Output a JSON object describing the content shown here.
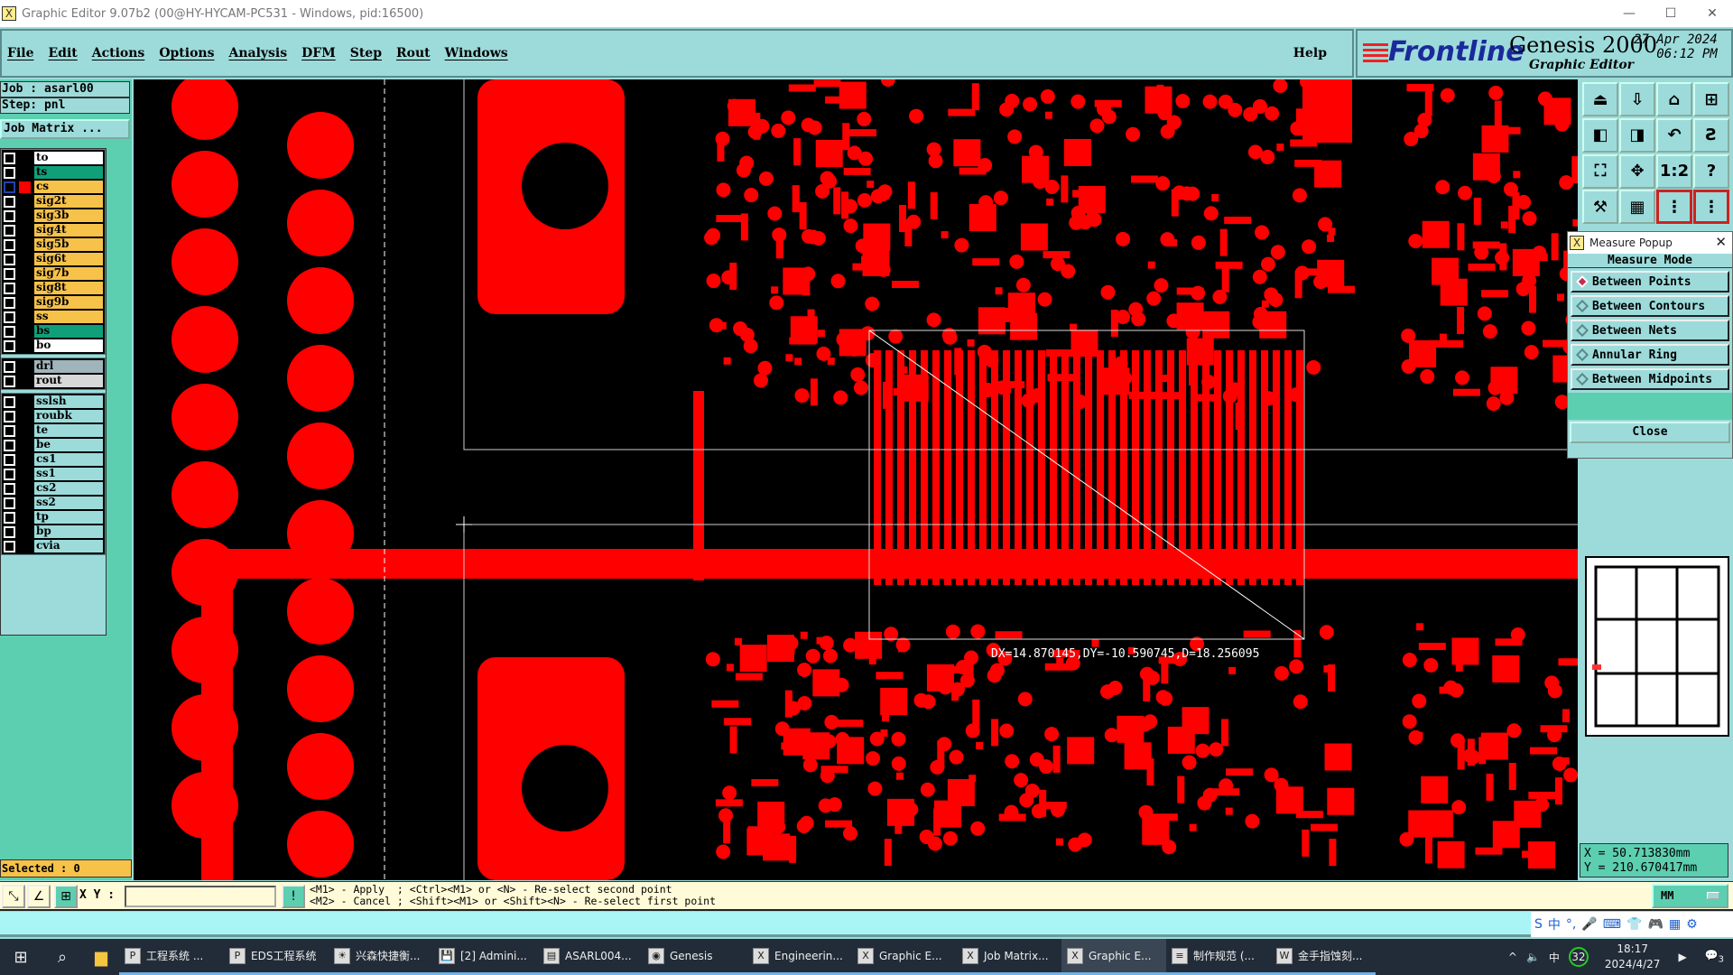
{
  "window": {
    "title": "Graphic Editor 9.07b2 (00@HY-HYCAM-PC531 - Windows, pid:16500)",
    "controls": [
      "—",
      "☐",
      "✕"
    ]
  },
  "menu": {
    "items": [
      "File",
      "Edit",
      "Actions",
      "Options",
      "Analysis",
      "DFM",
      "Step",
      "Rout",
      "Windows"
    ],
    "help": "Help"
  },
  "brand": {
    "logo": "Frontline",
    "product": "Genesis 2000",
    "subtitle": "Graphic Editor",
    "date": "27 Apr 2024",
    "time": "06:12 PM"
  },
  "job": {
    "job_label": "Job : asarl00",
    "step_label": "Step: pnl",
    "matrix_button": "Job Matrix ..."
  },
  "layers": [
    [
      {
        "name": "to",
        "color": "#ffffff"
      },
      {
        "name": "ts",
        "color": "#0fa07a"
      },
      {
        "name": "cs",
        "color": "#f7c24a",
        "active": true
      },
      {
        "name": "sig2t",
        "color": "#f7c24a"
      },
      {
        "name": "sig3b",
        "color": "#f7c24a"
      },
      {
        "name": "sig4t",
        "color": "#f7c24a"
      },
      {
        "name": "sig5b",
        "color": "#f7c24a"
      },
      {
        "name": "sig6t",
        "color": "#f7c24a"
      },
      {
        "name": "sig7b",
        "color": "#f7c24a"
      },
      {
        "name": "sig8t",
        "color": "#f7c24a"
      },
      {
        "name": "sig9b",
        "color": "#f7c24a"
      },
      {
        "name": "ss",
        "color": "#f7c24a"
      },
      {
        "name": "bs",
        "color": "#0fa07a"
      },
      {
        "name": "bo",
        "color": "#ffffff"
      }
    ],
    [
      {
        "name": "drl",
        "color": "#a0b4bc"
      },
      {
        "name": "rout",
        "color": "#d8d8d8"
      }
    ],
    [
      {
        "name": "sslsh",
        "color": "#9ddbdb"
      },
      {
        "name": "roubk",
        "color": "#9ddbdb"
      },
      {
        "name": "te",
        "color": "#9ddbdb"
      },
      {
        "name": "be",
        "color": "#9ddbdb"
      },
      {
        "name": "cs1",
        "color": "#9ddbdb"
      },
      {
        "name": "ss1",
        "color": "#9ddbdb"
      },
      {
        "name": "cs2",
        "color": "#9ddbdb"
      },
      {
        "name": "ss2",
        "color": "#9ddbdb"
      },
      {
        "name": "tp",
        "color": "#9ddbdb"
      },
      {
        "name": "bp",
        "color": "#9ddbdb"
      },
      {
        "name": "cvia",
        "color": "#9ddbdb"
      }
    ]
  ],
  "selected": "Selected : 0",
  "canvas": {
    "measure_readout": "DX=14.870145,DY=-10.590745,D=18.256095",
    "layer_color": "#ff0000"
  },
  "toolbar": {
    "icons": [
      "open-job-icon",
      "save-icon",
      "home-icon",
      "grid-xy-icon",
      "move-left-icon",
      "move-right-icon",
      "undo-icon",
      "snap-icon",
      "zoom-fit-icon",
      "pan-icon",
      "one-to-two-icon",
      "help-icon",
      "tools-icon",
      "grid-icon",
      "netlist-icon",
      "netlist-edit-icon"
    ],
    "ratio_label": "1:2",
    "help_label": "?"
  },
  "measure_popup": {
    "title": "Measure Popup",
    "mode_title": "Measure Mode",
    "options": [
      "Between Points",
      "Between Contours",
      "Between Nets",
      "Annular Ring",
      "Between Midpoints"
    ],
    "selected": "Between Points",
    "close": "Close"
  },
  "coords": {
    "x": "X  =  50.713830mm",
    "y": "Y  = 210.670417mm"
  },
  "status": {
    "xy_label": "X Y :",
    "xy_value": "",
    "hint_line1": "<M1> - Apply  ; <Ctrl><M1> or <N> - Re-select second point",
    "hint_line2": "<M2> - Cancel ; <Shift><M1> or <Shift><N> - Re-select first point",
    "units": "MM"
  },
  "ime": [
    "S",
    "中",
    "°,",
    "🎤",
    "⌨",
    "👕",
    "🎮",
    "▦",
    "⚙"
  ],
  "taskbar": {
    "apps": [
      {
        "label": "工程系统  ...",
        "icon": "P"
      },
      {
        "label": "EDS工程系统",
        "icon": "P"
      },
      {
        "label": "兴森快捷衡...",
        "icon": "☀"
      },
      {
        "label": "[2] Admini...",
        "icon": "💾"
      },
      {
        "label": "ASARL004...",
        "icon": "▤"
      },
      {
        "label": "Genesis",
        "icon": "◉"
      },
      {
        "label": "Engineerin...",
        "icon": "X"
      },
      {
        "label": "Graphic E...",
        "icon": "X"
      },
      {
        "label": "Job Matrix...",
        "icon": "X"
      },
      {
        "label": "Graphic E...",
        "icon": "X",
        "active": true
      },
      {
        "label": "制作规范 (...",
        "icon": "≡"
      },
      {
        "label": "金手指蚀刻...",
        "icon": "W"
      }
    ],
    "tray": [
      "^",
      "中",
      "32"
    ],
    "time": "18:17",
    "date": "2024/4/27",
    "notifications": "3"
  }
}
